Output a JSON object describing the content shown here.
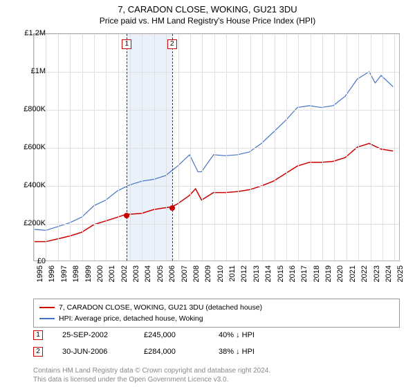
{
  "title": "7, CARADON CLOSE, WOKING, GU21 3DU",
  "subtitle": "Price paid vs. HM Land Registry's House Price Index (HPI)",
  "chart": {
    "type": "line",
    "xlim": [
      1995,
      2025.5
    ],
    "ylim": [
      0,
      1200000
    ],
    "ytick_step": 200000,
    "yticks": [
      "£0",
      "£200K",
      "£400K",
      "£600K",
      "£800K",
      "£1M",
      "£1.2M"
    ],
    "xticks": [
      1995,
      1996,
      1997,
      1998,
      1999,
      2000,
      2001,
      2002,
      2003,
      2004,
      2005,
      2006,
      2007,
      2008,
      2009,
      2010,
      2011,
      2012,
      2013,
      2014,
      2015,
      2016,
      2017,
      2018,
      2019,
      2020,
      2021,
      2022,
      2023,
      2024,
      2025
    ],
    "background_color": "#ffffff",
    "grid_color": "#e0e0e0",
    "border_color": "#b0b0b0",
    "series": [
      {
        "name": "subject",
        "color": "#cc0000",
        "width": 1.5,
        "points": [
          [
            1995,
            100000
          ],
          [
            1996,
            100000
          ],
          [
            1997,
            115000
          ],
          [
            1998,
            130000
          ],
          [
            1999,
            150000
          ],
          [
            2000,
            190000
          ],
          [
            2001,
            210000
          ],
          [
            2002,
            230000
          ],
          [
            2002.7,
            245000
          ],
          [
            2003,
            245000
          ],
          [
            2004,
            250000
          ],
          [
            2005,
            270000
          ],
          [
            2006,
            280000
          ],
          [
            2006.5,
            284000
          ],
          [
            2007,
            300000
          ],
          [
            2008,
            345000
          ],
          [
            2008.5,
            380000
          ],
          [
            2009,
            320000
          ],
          [
            2010,
            360000
          ],
          [
            2011,
            360000
          ],
          [
            2012,
            365000
          ],
          [
            2013,
            375000
          ],
          [
            2014,
            395000
          ],
          [
            2015,
            420000
          ],
          [
            2016,
            460000
          ],
          [
            2017,
            500000
          ],
          [
            2018,
            520000
          ],
          [
            2019,
            520000
          ],
          [
            2020,
            525000
          ],
          [
            2021,
            545000
          ],
          [
            2022,
            600000
          ],
          [
            2023,
            620000
          ],
          [
            2024,
            590000
          ],
          [
            2025,
            580000
          ]
        ]
      },
      {
        "name": "hpi",
        "color": "#4472c4",
        "width": 1.2,
        "points": [
          [
            1995,
            165000
          ],
          [
            1996,
            160000
          ],
          [
            1997,
            180000
          ],
          [
            1998,
            200000
          ],
          [
            1999,
            230000
          ],
          [
            2000,
            290000
          ],
          [
            2001,
            320000
          ],
          [
            2002,
            370000
          ],
          [
            2003,
            400000
          ],
          [
            2004,
            420000
          ],
          [
            2005,
            430000
          ],
          [
            2006,
            450000
          ],
          [
            2007,
            500000
          ],
          [
            2008,
            560000
          ],
          [
            2008.7,
            470000
          ],
          [
            2009,
            470000
          ],
          [
            2010,
            560000
          ],
          [
            2011,
            555000
          ],
          [
            2012,
            560000
          ],
          [
            2013,
            575000
          ],
          [
            2014,
            620000
          ],
          [
            2015,
            680000
          ],
          [
            2016,
            740000
          ],
          [
            2017,
            810000
          ],
          [
            2018,
            820000
          ],
          [
            2019,
            810000
          ],
          [
            2020,
            820000
          ],
          [
            2021,
            870000
          ],
          [
            2022,
            960000
          ],
          [
            2023,
            1000000
          ],
          [
            2023.5,
            940000
          ],
          [
            2024,
            980000
          ],
          [
            2025,
            920000
          ]
        ]
      }
    ],
    "band": {
      "start": 2002.73,
      "end": 2006.5,
      "color": "#eaf1fb"
    },
    "events": [
      {
        "n": "1",
        "x": 2002.73,
        "color": "#cc0000",
        "marker_y": 245000
      },
      {
        "n": "2",
        "x": 2006.5,
        "color": "#cc0000",
        "marker_y": 284000
      }
    ]
  },
  "legend": {
    "items": [
      {
        "color": "#cc0000",
        "label": "7, CARADON CLOSE, WOKING, GU21 3DU (detached house)"
      },
      {
        "color": "#4472c4",
        "label": "HPI: Average price, detached house, Woking"
      }
    ]
  },
  "transactions": [
    {
      "n": "1",
      "color": "#cc0000",
      "date": "25-SEP-2002",
      "price": "£245,000",
      "delta": "40% ↓ HPI"
    },
    {
      "n": "2",
      "color": "#cc0000",
      "date": "30-JUN-2006",
      "price": "£284,000",
      "delta": "38% ↓ HPI"
    }
  ],
  "footer": {
    "line1": "Contains HM Land Registry data © Crown copyright and database right 2024.",
    "line2": "This data is licensed under the Open Government Licence v3.0."
  }
}
